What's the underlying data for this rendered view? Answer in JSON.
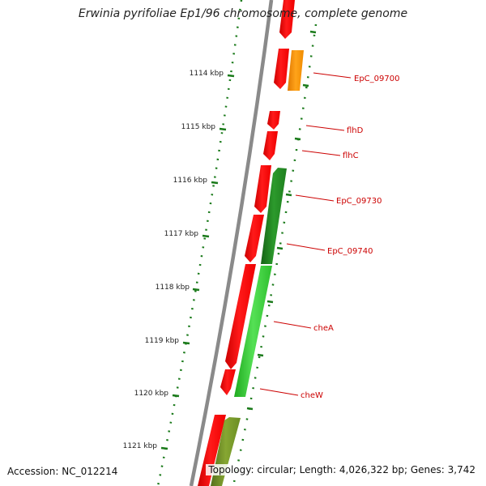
{
  "title": "Erwinia pyrifoliae Ep1/96 chromosome, complete genome",
  "footer": {
    "accession": "Accession: NC_012214",
    "summary": "Topology: circular; Length: 4,026,322 bp; Genes: 3,742"
  },
  "ticks": [
    "1114 kbp",
    "1115 kbp",
    "1116 kbp",
    "1117 kbp",
    "1118 kbp",
    "1119 kbp",
    "1120 kbp",
    "1121 kbp"
  ],
  "genes": [
    {
      "label": "EpC_09700",
      "color": "#ff9900"
    },
    {
      "label": "flhD",
      "color": "#ff0000"
    },
    {
      "label": "flhC",
      "color": "#ff0000"
    },
    {
      "label": "EpC_09730",
      "color": "#228b22"
    },
    {
      "label": "EpC_09740",
      "color": "#228b22"
    },
    {
      "label": "cheA",
      "color": "#33cc33"
    },
    {
      "label": "cheW",
      "color": "#33cc33"
    }
  ],
  "colors": {
    "backbone": "#808080",
    "forward_strand": "#ff0000",
    "reverse_strand_dark": "#228b22",
    "reverse_strand_light": "#33cc33",
    "reverse_strand_olive": "#6b8e23",
    "highlight_gene": "#ff9900",
    "label_text": "#cc0000",
    "tick_marks": "#1a7a1a"
  }
}
